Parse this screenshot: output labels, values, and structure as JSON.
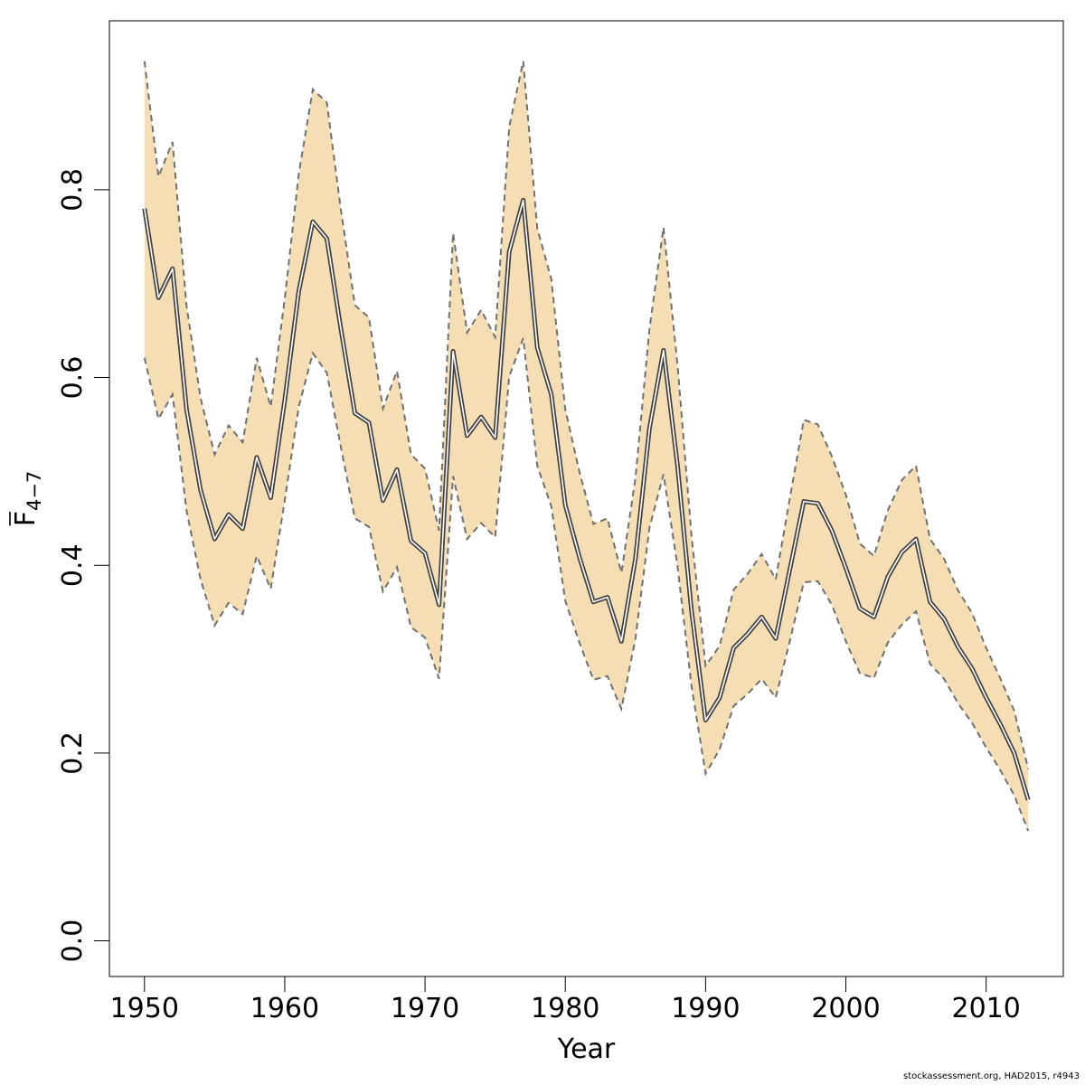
{
  "chart_data": {
    "type": "line",
    "xlabel": "Year",
    "ylabel": "F",
    "ylabel_subscript": "4−7",
    "xlim": [
      1947.5,
      2015.5
    ],
    "ylim": [
      -0.038,
      0.98
    ],
    "x_ticks": [
      1950,
      1960,
      1970,
      1980,
      1990,
      2000,
      2010
    ],
    "y_ticks": [
      0.0,
      0.2,
      0.4,
      0.6,
      0.8
    ],
    "x_tick_labels": [
      "1950",
      "1960",
      "1970",
      "1980",
      "1990",
      "2000",
      "2010"
    ],
    "y_tick_labels": [
      "0.0",
      "0.2",
      "0.4",
      "0.6",
      "0.8"
    ],
    "grid": false,
    "colors": {
      "band_fill": "#f5deb3",
      "band_edge": "#707070",
      "line": "#404040"
    },
    "x": [
      1950,
      1951,
      1952,
      1953,
      1954,
      1955,
      1956,
      1957,
      1958,
      1959,
      1960,
      1961,
      1962,
      1963,
      1964,
      1965,
      1966,
      1967,
      1968,
      1969,
      1970,
      1971,
      1972,
      1973,
      1974,
      1975,
      1976,
      1977,
      1978,
      1979,
      1980,
      1981,
      1982,
      1983,
      1984,
      1985,
      1986,
      1987,
      1988,
      1989,
      1990,
      1991,
      1992,
      1993,
      1994,
      1995,
      1996,
      1997,
      1998,
      1999,
      2000,
      2001,
      2002,
      2003,
      2004,
      2005,
      2006,
      2007,
      2008,
      2009,
      2010,
      2011,
      2012,
      2013
    ],
    "series": [
      {
        "values": [
          0.78,
          0.685,
          0.716,
          0.566,
          0.48,
          0.428,
          0.454,
          0.439,
          0.515,
          0.472,
          0.576,
          0.692,
          0.766,
          0.748,
          0.652,
          0.562,
          0.552,
          0.469,
          0.502,
          0.426,
          0.413,
          0.358,
          0.628,
          0.538,
          0.558,
          0.536,
          0.734,
          0.789,
          0.632,
          0.582,
          0.464,
          0.409,
          0.361,
          0.366,
          0.319,
          0.407,
          0.546,
          0.629,
          0.506,
          0.351,
          0.235,
          0.259,
          0.312,
          0.327,
          0.345,
          0.322,
          0.395,
          0.468,
          0.466,
          0.437,
          0.397,
          0.354,
          0.345,
          0.388,
          0.414,
          0.428,
          0.361,
          0.343,
          0.313,
          0.29,
          0.259,
          0.231,
          0.2,
          0.15
        ]
      }
    ],
    "band_lower": [
      0.621,
      0.556,
      0.582,
      0.458,
      0.385,
      0.336,
      0.36,
      0.348,
      0.41,
      0.375,
      0.469,
      0.569,
      0.626,
      0.605,
      0.526,
      0.45,
      0.441,
      0.372,
      0.398,
      0.334,
      0.323,
      0.279,
      0.495,
      0.428,
      0.445,
      0.43,
      0.601,
      0.642,
      0.506,
      0.463,
      0.362,
      0.318,
      0.278,
      0.282,
      0.247,
      0.322,
      0.44,
      0.497,
      0.399,
      0.271,
      0.178,
      0.204,
      0.25,
      0.263,
      0.279,
      0.259,
      0.319,
      0.382,
      0.383,
      0.358,
      0.319,
      0.285,
      0.28,
      0.318,
      0.337,
      0.351,
      0.295,
      0.279,
      0.253,
      0.232,
      0.206,
      0.182,
      0.155,
      0.117
    ],
    "band_upper": [
      0.937,
      0.814,
      0.851,
      0.676,
      0.578,
      0.518,
      0.549,
      0.531,
      0.621,
      0.569,
      0.684,
      0.817,
      0.907,
      0.893,
      0.779,
      0.677,
      0.664,
      0.567,
      0.607,
      0.518,
      0.503,
      0.437,
      0.754,
      0.648,
      0.672,
      0.643,
      0.867,
      0.937,
      0.759,
      0.705,
      0.566,
      0.5,
      0.444,
      0.45,
      0.392,
      0.493,
      0.652,
      0.76,
      0.613,
      0.431,
      0.293,
      0.314,
      0.374,
      0.391,
      0.412,
      0.385,
      0.471,
      0.555,
      0.55,
      0.516,
      0.475,
      0.423,
      0.41,
      0.459,
      0.491,
      0.506,
      0.428,
      0.407,
      0.373,
      0.349,
      0.312,
      0.28,
      0.245,
      0.183
    ]
  },
  "footer": {
    "credit": "stockassessment.org, HAD2015, r4943"
  }
}
